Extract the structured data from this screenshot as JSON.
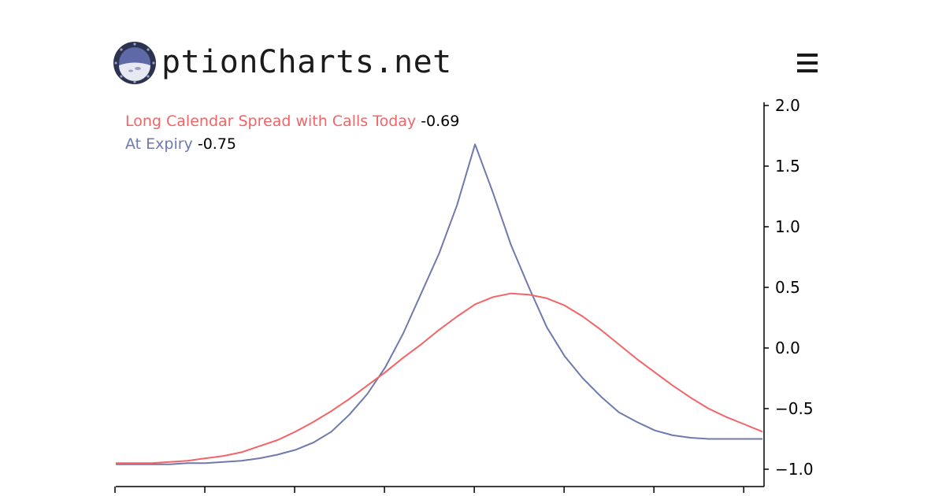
{
  "header": {
    "logo_text": "ptionCharts.net",
    "logo_icon": "porthole-moon-icon",
    "menu_icon": "hamburger-menu-icon"
  },
  "legend": {
    "today_label": "Long Calendar Spread with Calls Today",
    "today_value": "-0.69",
    "expiry_label": "At Expiry",
    "expiry_value": "-0.75"
  },
  "colors": {
    "today": "#f36467",
    "expiry": "#7079ad",
    "axis": "#000000",
    "logo_dark": "#2c3350",
    "logo_mid": "#5e6aa8"
  },
  "chart_data": {
    "type": "line",
    "x": [
      0,
      1,
      2,
      3,
      4,
      5,
      6,
      7,
      8,
      9,
      10,
      11,
      12,
      13,
      14,
      15,
      16,
      17,
      18,
      19,
      20,
      21,
      22,
      23,
      24,
      25,
      26,
      27,
      28,
      29,
      30,
      31,
      32,
      33,
      34,
      35,
      36
    ],
    "series": [
      {
        "name": "Long Calendar Spread with Calls Today",
        "values": [
          -0.95,
          -0.95,
          -0.95,
          -0.94,
          -0.93,
          -0.91,
          -0.89,
          -0.86,
          -0.81,
          -0.76,
          -0.69,
          -0.61,
          -0.52,
          -0.42,
          -0.31,
          -0.2,
          -0.08,
          0.03,
          0.15,
          0.26,
          0.36,
          0.42,
          0.45,
          0.44,
          0.41,
          0.35,
          0.26,
          0.15,
          0.03,
          -0.09,
          -0.2,
          -0.31,
          -0.41,
          -0.5,
          -0.57,
          -0.63,
          -0.69
        ]
      },
      {
        "name": "At Expiry",
        "values": [
          -0.96,
          -0.96,
          -0.96,
          -0.96,
          -0.95,
          -0.95,
          -0.94,
          -0.93,
          -0.91,
          -0.88,
          -0.84,
          -0.78,
          -0.69,
          -0.55,
          -0.38,
          -0.16,
          0.12,
          0.45,
          0.78,
          1.18,
          1.68,
          1.28,
          0.85,
          0.5,
          0.17,
          -0.07,
          -0.25,
          -0.4,
          -0.53,
          -0.61,
          -0.68,
          -0.72,
          -0.74,
          -0.75,
          -0.75,
          -0.75,
          -0.75
        ]
      }
    ],
    "yticks": [
      "2.0",
      "1.5",
      "1.0",
      "0.5",
      "0.0",
      "−0.5",
      "−1.0"
    ],
    "ytick_values": [
      2.0,
      1.5,
      1.0,
      0.5,
      0.0,
      -0.5,
      -1.0
    ],
    "ylim": [
      -1.1,
      2.05
    ],
    "xlim": [
      0,
      36
    ],
    "xticks": [
      0,
      5,
      10,
      15,
      20,
      25,
      30,
      35
    ],
    "y_axis_position": "right",
    "grid": false,
    "legend_position": "top-left"
  }
}
